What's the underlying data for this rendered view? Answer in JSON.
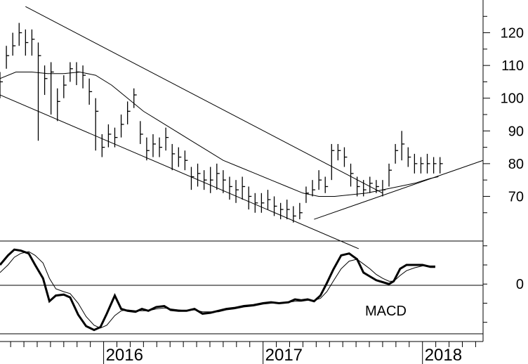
{
  "chart_data": [
    {
      "type": "ohlc",
      "panel": "price",
      "title": "",
      "xlabel": "",
      "ylabel": "",
      "ylim": [
        57,
        130
      ],
      "y_tick_labels": [
        "70",
        "80",
        "90",
        "100",
        "110",
        "120"
      ],
      "y_tick_values": [
        70,
        80,
        90,
        100,
        110,
        120
      ],
      "x_tick_labels": [
        "2016",
        "2017",
        "2018"
      ],
      "x_tick_values": [
        2016.0,
        2017.0,
        2018.0
      ],
      "xlim": [
        2015.35,
        2018.38
      ],
      "series": [
        {
          "kind": "price_bars",
          "x": [
            2015.35,
            2015.39,
            2015.43,
            2015.47,
            2015.51,
            2015.55,
            2015.59,
            2015.63,
            2015.67,
            2015.71,
            2015.75,
            2015.79,
            2015.83,
            2015.87,
            2015.91,
            2015.95,
            2015.99,
            2016.03,
            2016.07,
            2016.11,
            2016.15,
            2016.19,
            2016.23,
            2016.27,
            2016.31,
            2016.35,
            2016.39,
            2016.43,
            2016.47,
            2016.51,
            2016.55,
            2016.59,
            2016.63,
            2016.67,
            2016.71,
            2016.75,
            2016.79,
            2016.83,
            2016.87,
            2016.91,
            2016.95,
            2016.99,
            2017.03,
            2017.07,
            2017.11,
            2017.15,
            2017.19,
            2017.23,
            2017.27,
            2017.31,
            2017.35,
            2017.39,
            2017.43,
            2017.47,
            2017.51,
            2017.55,
            2017.59,
            2017.63,
            2017.67,
            2017.71,
            2017.75,
            2017.79,
            2017.83,
            2017.87,
            2017.91,
            2017.95,
            2017.99,
            2018.03,
            2018.07,
            2018.11
          ],
          "close": [
            105,
            113,
            116,
            120,
            117,
            118,
            113,
            106,
            108,
            99,
            104,
            109,
            108,
            107,
            102,
            96,
            85,
            89,
            88,
            92,
            96,
            101,
            89,
            84,
            86,
            85,
            88,
            83,
            82,
            81,
            76,
            77,
            75,
            75,
            77,
            75,
            73,
            72,
            73,
            70,
            68,
            68,
            69,
            67,
            66,
            66,
            64,
            65,
            71,
            72,
            75,
            73,
            84,
            84,
            82,
            77,
            73,
            72,
            74,
            73,
            72,
            78,
            84,
            86,
            82,
            80,
            80,
            80,
            80,
            80
          ],
          "high": [
            108,
            116,
            120,
            123,
            121,
            121,
            117,
            110,
            111,
            103,
            107,
            111,
            111,
            110,
            106,
            100,
            89,
            92,
            91,
            95,
            99,
            103,
            93,
            88,
            89,
            88,
            91,
            86,
            85,
            84,
            79,
            80,
            78,
            79,
            80,
            78,
            76,
            75,
            76,
            73,
            71,
            71,
            72,
            70,
            68,
            69,
            67,
            68,
            73,
            75,
            78,
            76,
            86,
            86,
            85,
            80,
            76,
            75,
            76,
            75,
            75,
            80,
            86,
            90,
            85,
            83,
            82,
            83,
            82,
            82
          ],
          "low": [
            100,
            109,
            113,
            116,
            113,
            113,
            87,
            101,
            95,
            93,
            100,
            105,
            104,
            103,
            98,
            84,
            82,
            85,
            85,
            88,
            92,
            97,
            86,
            81,
            82,
            82,
            84,
            78,
            79,
            78,
            72,
            73,
            72,
            71,
            72,
            71,
            69,
            68,
            69,
            66,
            65,
            65,
            66,
            64,
            63,
            63,
            62,
            63,
            68,
            70,
            72,
            71,
            75,
            81,
            79,
            73,
            70,
            70,
            71,
            71,
            70,
            73,
            80,
            81,
            79,
            77,
            77,
            77,
            77,
            77
          ]
        },
        {
          "kind": "moving_average",
          "x": [
            2015.35,
            2015.45,
            2015.55,
            2015.65,
            2015.75,
            2015.85,
            2015.95,
            2016.05,
            2016.15,
            2016.25,
            2016.35,
            2016.45,
            2016.55,
            2016.65,
            2016.75,
            2016.85,
            2016.95,
            2017.05,
            2017.15,
            2017.25,
            2017.35,
            2017.45,
            2017.55,
            2017.65,
            2017.75,
            2017.85,
            2017.95,
            2018.05,
            2018.1
          ],
          "values": [
            106,
            108,
            108,
            107.5,
            107.5,
            108,
            107,
            104,
            100,
            96,
            93,
            90,
            87,
            84,
            81,
            79,
            77,
            75,
            73,
            71,
            70,
            70,
            70.5,
            71,
            72,
            73,
            74,
            75.5,
            76
          ]
        }
      ],
      "trendlines": [
        {
          "x": [
            2015.51,
            2017.75
          ],
          "y": [
            128,
            71
          ]
        },
        {
          "x": [
            2015.35,
            2017.6
          ],
          "y": [
            101,
            54
          ]
        },
        {
          "x": [
            2017.32,
            2018.38
          ],
          "y": [
            63,
            81
          ]
        }
      ]
    },
    {
      "type": "line",
      "panel": "indicator",
      "title": "MACD",
      "xlabel": "",
      "ylabel": "",
      "ylim": [
        -5.2,
        4.5
      ],
      "y_tick_labels": [
        "0"
      ],
      "y_tick_values": [
        0
      ],
      "series": [
        {
          "kind": "macd",
          "x": [
            2015.35,
            2015.4,
            2015.44,
            2015.48,
            2015.53,
            2015.57,
            2015.62,
            2015.66,
            2015.7,
            2015.75,
            2015.79,
            2015.84,
            2015.89,
            2015.94,
            2015.98,
            2016.02,
            2016.07,
            2016.11,
            2016.15,
            2016.2,
            2016.24,
            2016.28,
            2016.33,
            2016.38,
            2016.42,
            2016.47,
            2016.52,
            2016.57,
            2016.62,
            2016.67,
            2016.72,
            2016.77,
            2016.82,
            2016.88,
            2016.94,
            2017.0,
            2017.05,
            2017.1,
            2017.16,
            2017.2,
            2017.24,
            2017.28,
            2017.32,
            2017.36,
            2017.4,
            2017.44,
            2017.49,
            2017.54,
            2017.59,
            2017.63,
            2017.67,
            2017.71,
            2017.75,
            2017.79,
            2017.82,
            2017.86,
            2017.9,
            2017.95,
            2018.0,
            2018.05,
            2018.08
          ],
          "values": [
            2.0,
            3.0,
            3.6,
            3.5,
            3.2,
            2.0,
            0.6,
            -1.8,
            -1.2,
            -1.1,
            -1.4,
            -3.2,
            -4.4,
            -4.8,
            -4.5,
            -3.1,
            -1.2,
            -2.6,
            -2.8,
            -2.9,
            -2.6,
            -2.8,
            -2.4,
            -2.3,
            -2.7,
            -2.8,
            -2.8,
            -2.6,
            -3.1,
            -3.0,
            -2.8,
            -2.6,
            -2.5,
            -2.3,
            -2.2,
            -2.0,
            -1.9,
            -2.0,
            -1.9,
            -1.6,
            -1.7,
            -1.6,
            -1.8,
            -1.2,
            0.1,
            1.5,
            3.0,
            3.2,
            2.6,
            1.2,
            0.8,
            0.4,
            0.2,
            0.0,
            0.3,
            1.6,
            2.0,
            2.0,
            2.0,
            1.8,
            1.8
          ]
        },
        {
          "kind": "signal",
          "x": [
            2015.35,
            2015.4,
            2015.44,
            2015.48,
            2015.53,
            2015.57,
            2015.62,
            2015.66,
            2015.7,
            2015.75,
            2015.79,
            2015.84,
            2015.89,
            2015.94,
            2015.98,
            2016.02,
            2016.07,
            2016.11,
            2016.15,
            2016.2,
            2016.24,
            2016.28,
            2016.33,
            2016.38,
            2016.42,
            2016.47,
            2016.52,
            2016.57,
            2016.62,
            2016.67,
            2016.72,
            2016.77,
            2016.82,
            2016.88,
            2016.94,
            2017.0,
            2017.05,
            2017.1,
            2017.16,
            2017.2,
            2017.24,
            2017.28,
            2017.32,
            2017.36,
            2017.4,
            2017.44,
            2017.49,
            2017.54,
            2017.59,
            2017.63,
            2017.67,
            2017.71,
            2017.75,
            2017.79,
            2017.82,
            2017.86,
            2017.9,
            2017.95,
            2018.0,
            2018.05,
            2018.08
          ],
          "values": [
            1.2,
            2.0,
            2.8,
            3.2,
            3.4,
            3.0,
            2.2,
            0.6,
            -0.5,
            -0.8,
            -1.0,
            -2.0,
            -3.4,
            -4.3,
            -4.6,
            -4.3,
            -3.3,
            -2.8,
            -2.7,
            -2.8,
            -2.8,
            -2.8,
            -2.6,
            -2.5,
            -2.6,
            -2.7,
            -2.8,
            -2.7,
            -2.9,
            -2.9,
            -2.9,
            -2.7,
            -2.6,
            -2.4,
            -2.3,
            -2.1,
            -2.0,
            -2.0,
            -1.9,
            -1.8,
            -1.8,
            -1.7,
            -1.7,
            -1.5,
            -0.8,
            0.3,
            1.6,
            2.4,
            2.6,
            2.1,
            1.6,
            1.0,
            0.6,
            0.3,
            0.3,
            0.9,
            1.4,
            1.7,
            1.9,
            1.9,
            1.9
          ]
        }
      ]
    }
  ]
}
